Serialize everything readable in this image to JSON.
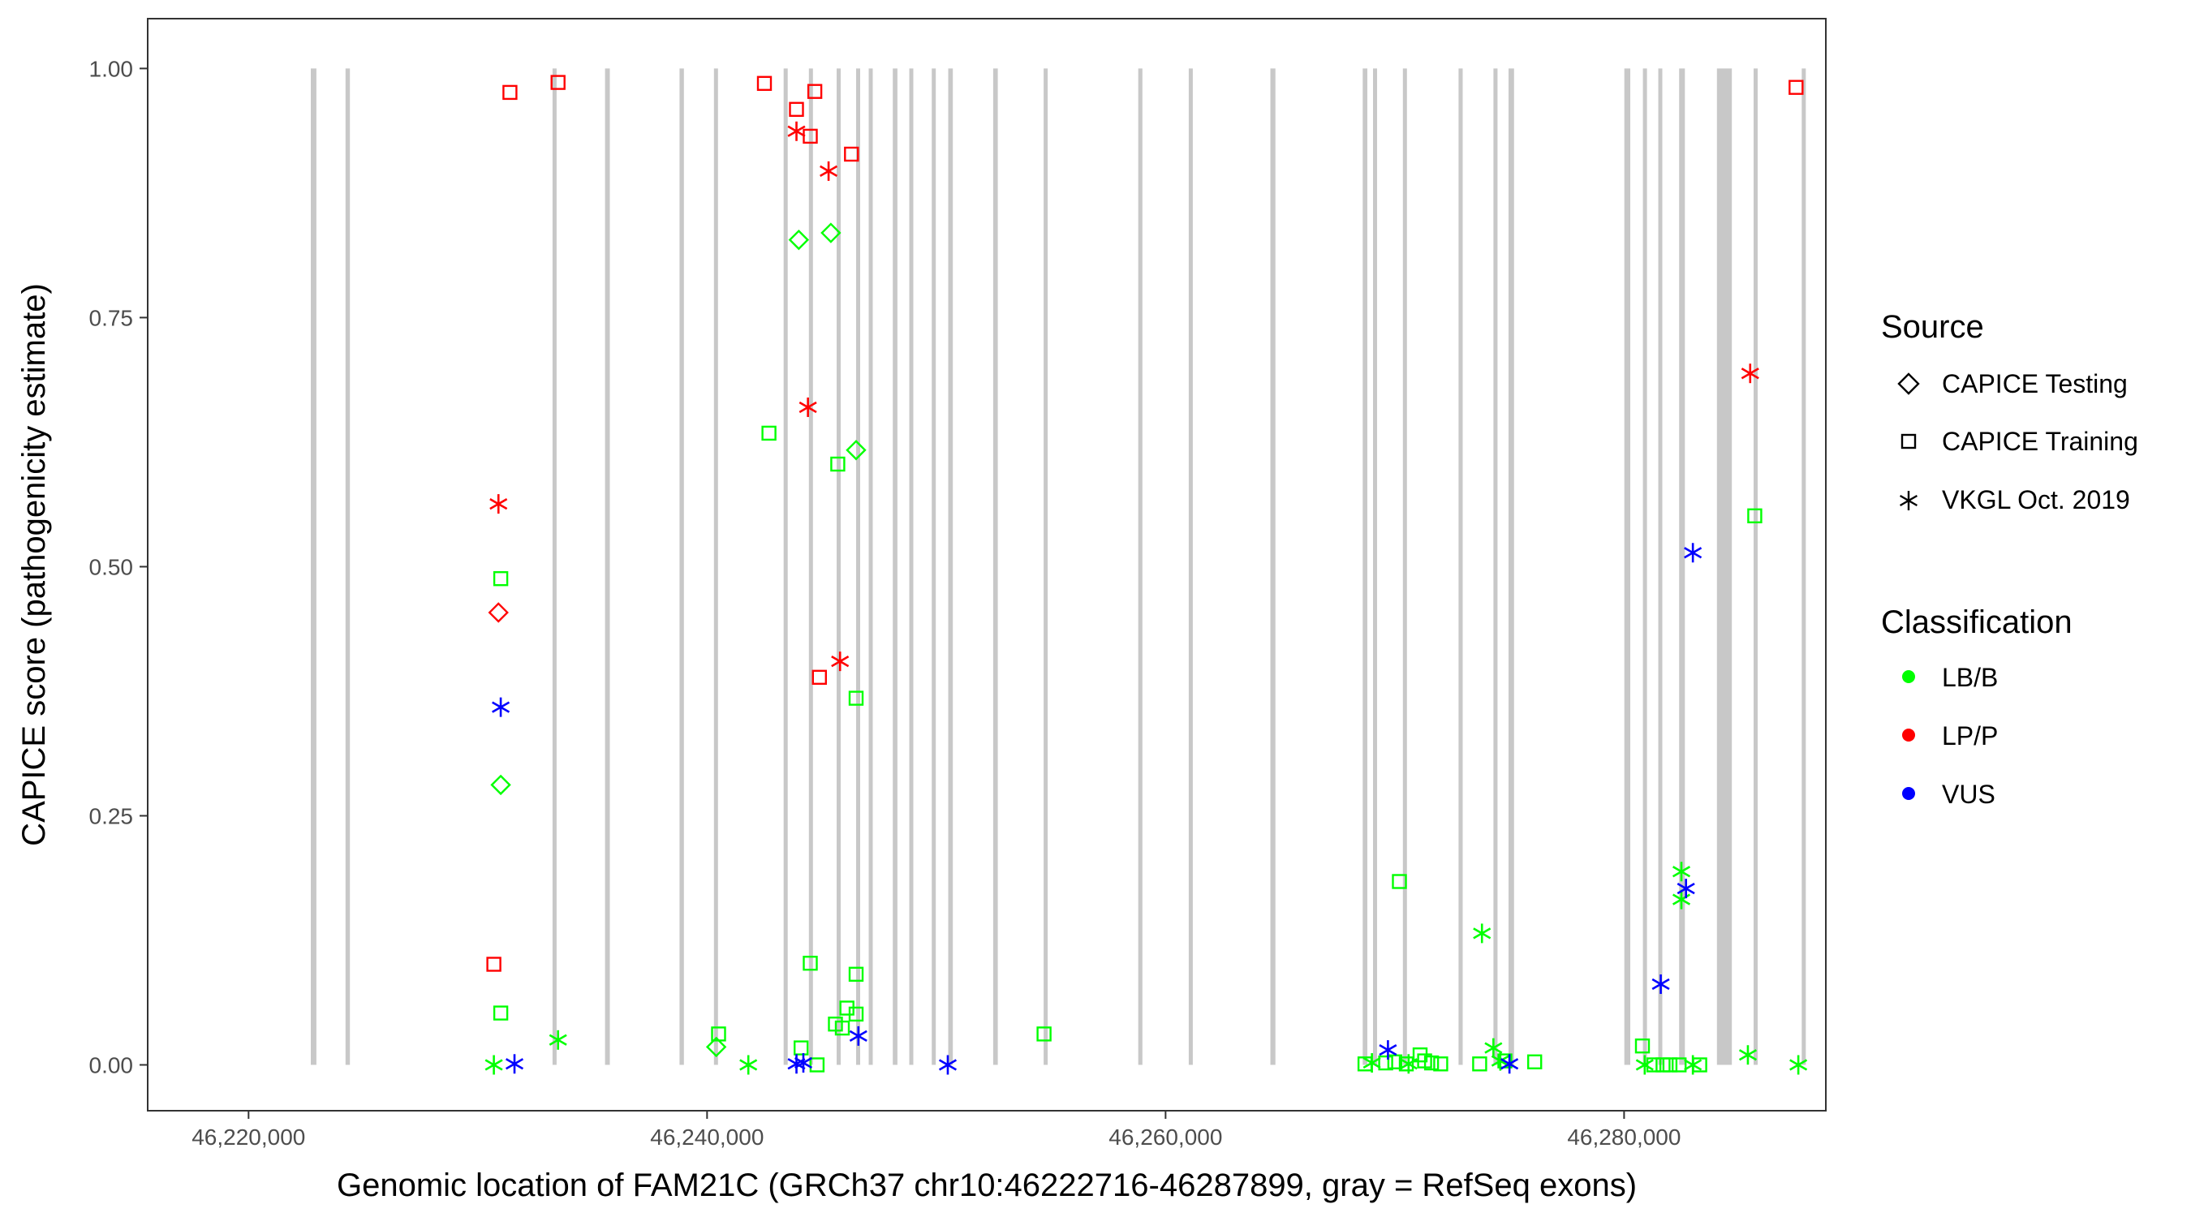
{
  "chart_data": {
    "type": "scatter",
    "xlabel": "Genomic location of FAM21C (GRCh37 chr10:46222716-46287899, gray = RefSeq exons)",
    "ylabel": "CAPICE score (pathogenicity estimate)",
    "xlim": [
      46215600,
      46288800
    ],
    "ylim": [
      -0.046,
      1.05
    ],
    "x_ticks": [
      46220000,
      46240000,
      46260000,
      46280000
    ],
    "x_tick_labels": [
      "46,220,000",
      "46,240,000",
      "46,260,000",
      "46,280,000"
    ],
    "y_ticks": [
      0,
      0.25,
      0.5,
      0.75,
      1.0
    ],
    "y_tick_labels": [
      "0.00",
      "0.25",
      "0.50",
      "0.75",
      "1.00"
    ],
    "grid": false,
    "exon_color": "#c8c8c8",
    "exons": [
      [
        46222716,
        46222960
      ],
      [
        46224230,
        46224420
      ],
      [
        46233260,
        46233400
      ],
      [
        46235550,
        46235760
      ],
      [
        46238800,
        46238990
      ],
      [
        46240300,
        46240460
      ],
      [
        46243340,
        46243500
      ],
      [
        46244440,
        46244580
      ],
      [
        46245650,
        46245800
      ],
      [
        46246500,
        46246660
      ],
      [
        46247050,
        46247200
      ],
      [
        46248100,
        46248300
      ],
      [
        46248820,
        46248960
      ],
      [
        46249800,
        46249940
      ],
      [
        46250520,
        46250720
      ],
      [
        46252480,
        46252680
      ],
      [
        46254680,
        46254820
      ],
      [
        46258810,
        46258990
      ],
      [
        46261010,
        46261180
      ],
      [
        46264570,
        46264790
      ],
      [
        46268600,
        46268800
      ],
      [
        46269050,
        46269200
      ],
      [
        46270350,
        46270500
      ],
      [
        46272780,
        46272960
      ],
      [
        46274300,
        46274440
      ],
      [
        46274960,
        46275200
      ],
      [
        46280010,
        46280270
      ],
      [
        46280820,
        46280940
      ],
      [
        46281490,
        46281630
      ],
      [
        46282400,
        46282650
      ],
      [
        46284050,
        46284700
      ],
      [
        46285650,
        46285810
      ],
      [
        46287750,
        46287899
      ]
    ],
    "legend": {
      "source_title": "Source",
      "sources": [
        {
          "name": "CAPICE Testing",
          "shape": "diamond"
        },
        {
          "name": "CAPICE Training",
          "shape": "square"
        },
        {
          "name": "VKGL Oct. 2019",
          "shape": "asterisk"
        }
      ],
      "classification_title": "Classification",
      "classes": [
        {
          "name": "LB/B",
          "color": "#00ff00"
        },
        {
          "name": "LP/P",
          "color": "#ff0000"
        },
        {
          "name": "VUS",
          "color": "#0000ff"
        }
      ]
    },
    "points": [
      {
        "x": 46233500,
        "y": 0.986,
        "shape": "square",
        "cls": "LP/P"
      },
      {
        "x": 46231400,
        "y": 0.976,
        "shape": "square",
        "cls": "LP/P"
      },
      {
        "x": 46242500,
        "y": 0.985,
        "shape": "square",
        "cls": "LP/P"
      },
      {
        "x": 46244700,
        "y": 0.977,
        "shape": "square",
        "cls": "LP/P"
      },
      {
        "x": 46243900,
        "y": 0.959,
        "shape": "square",
        "cls": "LP/P"
      },
      {
        "x": 46244500,
        "y": 0.932,
        "shape": "square",
        "cls": "LP/P"
      },
      {
        "x": 46246300,
        "y": 0.914,
        "shape": "square",
        "cls": "LP/P"
      },
      {
        "x": 46244900,
        "y": 0.389,
        "shape": "square",
        "cls": "LP/P"
      },
      {
        "x": 46230700,
        "y": 0.101,
        "shape": "square",
        "cls": "LP/P"
      },
      {
        "x": 46287500,
        "y": 0.981,
        "shape": "square",
        "cls": "LP/P"
      },
      {
        "x": 46243900,
        "y": 0.937,
        "shape": "asterisk",
        "cls": "LP/P"
      },
      {
        "x": 46245300,
        "y": 0.897,
        "shape": "asterisk",
        "cls": "LP/P"
      },
      {
        "x": 46244400,
        "y": 0.66,
        "shape": "asterisk",
        "cls": "LP/P"
      },
      {
        "x": 46245800,
        "y": 0.405,
        "shape": "asterisk",
        "cls": "LP/P"
      },
      {
        "x": 46230900,
        "y": 0.563,
        "shape": "asterisk",
        "cls": "LP/P"
      },
      {
        "x": 46285500,
        "y": 0.694,
        "shape": "asterisk",
        "cls": "LP/P"
      },
      {
        "x": 46230900,
        "y": 0.454,
        "shape": "diamond",
        "cls": "LP/P"
      },
      {
        "x": 46244000,
        "y": 0.828,
        "shape": "diamond",
        "cls": "LB/B"
      },
      {
        "x": 46245400,
        "y": 0.835,
        "shape": "diamond",
        "cls": "LB/B"
      },
      {
        "x": 46246500,
        "y": 0.617,
        "shape": "diamond",
        "cls": "LB/B"
      },
      {
        "x": 46231000,
        "y": 0.281,
        "shape": "diamond",
        "cls": "LB/B"
      },
      {
        "x": 46240400,
        "y": 0.018,
        "shape": "diamond",
        "cls": "LB/B"
      },
      {
        "x": 46231000,
        "y": 0.488,
        "shape": "square",
        "cls": "LB/B"
      },
      {
        "x": 46231000,
        "y": 0.052,
        "shape": "square",
        "cls": "LB/B"
      },
      {
        "x": 46242700,
        "y": 0.634,
        "shape": "square",
        "cls": "LB/B"
      },
      {
        "x": 46245700,
        "y": 0.603,
        "shape": "square",
        "cls": "LB/B"
      },
      {
        "x": 46246500,
        "y": 0.368,
        "shape": "square",
        "cls": "LB/B"
      },
      {
        "x": 46244500,
        "y": 0.102,
        "shape": "square",
        "cls": "LB/B"
      },
      {
        "x": 46246500,
        "y": 0.091,
        "shape": "square",
        "cls": "LB/B"
      },
      {
        "x": 46246100,
        "y": 0.057,
        "shape": "square",
        "cls": "LB/B"
      },
      {
        "x": 46246500,
        "y": 0.051,
        "shape": "square",
        "cls": "LB/B"
      },
      {
        "x": 46245600,
        "y": 0.041,
        "shape": "square",
        "cls": "LB/B"
      },
      {
        "x": 46245900,
        "y": 0.037,
        "shape": "square",
        "cls": "LB/B"
      },
      {
        "x": 46240500,
        "y": 0.031,
        "shape": "square",
        "cls": "LB/B"
      },
      {
        "x": 46244100,
        "y": 0.017,
        "shape": "square",
        "cls": "LB/B"
      },
      {
        "x": 46244800,
        "y": 0.0,
        "shape": "square",
        "cls": "LB/B"
      },
      {
        "x": 46254700,
        "y": 0.031,
        "shape": "square",
        "cls": "LB/B"
      },
      {
        "x": 46270200,
        "y": 0.184,
        "shape": "square",
        "cls": "LB/B"
      },
      {
        "x": 46268700,
        "y": 0.001,
        "shape": "square",
        "cls": "LB/B"
      },
      {
        "x": 46269600,
        "y": 0.002,
        "shape": "square",
        "cls": "LB/B"
      },
      {
        "x": 46270000,
        "y": 0.003,
        "shape": "square",
        "cls": "LB/B"
      },
      {
        "x": 46270500,
        "y": 0.001,
        "shape": "square",
        "cls": "LB/B"
      },
      {
        "x": 46271100,
        "y": 0.01,
        "shape": "square",
        "cls": "LB/B"
      },
      {
        "x": 46271300,
        "y": 0.004,
        "shape": "square",
        "cls": "LB/B"
      },
      {
        "x": 46271600,
        "y": 0.002,
        "shape": "square",
        "cls": "LB/B"
      },
      {
        "x": 46272000,
        "y": 0.001,
        "shape": "square",
        "cls": "LB/B"
      },
      {
        "x": 46273700,
        "y": 0.001,
        "shape": "square",
        "cls": "LB/B"
      },
      {
        "x": 46274800,
        "y": 0.004,
        "shape": "square",
        "cls": "LB/B"
      },
      {
        "x": 46276100,
        "y": 0.003,
        "shape": "square",
        "cls": "LB/B"
      },
      {
        "x": 46280800,
        "y": 0.019,
        "shape": "square",
        "cls": "LB/B"
      },
      {
        "x": 46281300,
        "y": 0.0,
        "shape": "square",
        "cls": "LB/B"
      },
      {
        "x": 46281700,
        "y": 0.0,
        "shape": "square",
        "cls": "LB/B"
      },
      {
        "x": 46282000,
        "y": 0.0,
        "shape": "square",
        "cls": "LB/B"
      },
      {
        "x": 46282400,
        "y": 0.0,
        "shape": "square",
        "cls": "LB/B"
      },
      {
        "x": 46283300,
        "y": 0.0,
        "shape": "square",
        "cls": "LB/B"
      },
      {
        "x": 46285700,
        "y": 0.551,
        "shape": "square",
        "cls": "LB/B"
      },
      {
        "x": 46233500,
        "y": 0.025,
        "shape": "asterisk",
        "cls": "LB/B"
      },
      {
        "x": 46230700,
        "y": 0.0,
        "shape": "asterisk",
        "cls": "LB/B"
      },
      {
        "x": 46241800,
        "y": 0.0,
        "shape": "asterisk",
        "cls": "LB/B"
      },
      {
        "x": 46273800,
        "y": 0.132,
        "shape": "asterisk",
        "cls": "LB/B"
      },
      {
        "x": 46274300,
        "y": 0.017,
        "shape": "asterisk",
        "cls": "LB/B"
      },
      {
        "x": 46274600,
        "y": 0.004,
        "shape": "asterisk",
        "cls": "LB/B"
      },
      {
        "x": 46269000,
        "y": 0.002,
        "shape": "asterisk",
        "cls": "LB/B"
      },
      {
        "x": 46270600,
        "y": 0.001,
        "shape": "asterisk",
        "cls": "LB/B"
      },
      {
        "x": 46282500,
        "y": 0.194,
        "shape": "asterisk",
        "cls": "LB/B"
      },
      {
        "x": 46282500,
        "y": 0.166,
        "shape": "asterisk",
        "cls": "LB/B"
      },
      {
        "x": 46283000,
        "y": 0.0,
        "shape": "asterisk",
        "cls": "LB/B"
      },
      {
        "x": 46280900,
        "y": 0.0,
        "shape": "asterisk",
        "cls": "LB/B"
      },
      {
        "x": 46285400,
        "y": 0.01,
        "shape": "asterisk",
        "cls": "LB/B"
      },
      {
        "x": 46287600,
        "y": 0.0,
        "shape": "asterisk",
        "cls": "LB/B"
      },
      {
        "x": 46231600,
        "y": 0.001,
        "shape": "asterisk",
        "cls": "VUS"
      },
      {
        "x": 46231000,
        "y": 0.359,
        "shape": "asterisk",
        "cls": "VUS"
      },
      {
        "x": 46243900,
        "y": 0.001,
        "shape": "asterisk",
        "cls": "VUS"
      },
      {
        "x": 46244200,
        "y": 0.002,
        "shape": "asterisk",
        "cls": "VUS"
      },
      {
        "x": 46246600,
        "y": 0.029,
        "shape": "asterisk",
        "cls": "VUS"
      },
      {
        "x": 46250500,
        "y": 0.0,
        "shape": "asterisk",
        "cls": "VUS"
      },
      {
        "x": 46269700,
        "y": 0.015,
        "shape": "asterisk",
        "cls": "VUS"
      },
      {
        "x": 46275000,
        "y": 0.001,
        "shape": "asterisk",
        "cls": "VUS"
      },
      {
        "x": 46281600,
        "y": 0.081,
        "shape": "asterisk",
        "cls": "VUS"
      },
      {
        "x": 46282700,
        "y": 0.177,
        "shape": "asterisk",
        "cls": "VUS"
      },
      {
        "x": 46283000,
        "y": 0.514,
        "shape": "asterisk",
        "cls": "VUS"
      }
    ]
  }
}
